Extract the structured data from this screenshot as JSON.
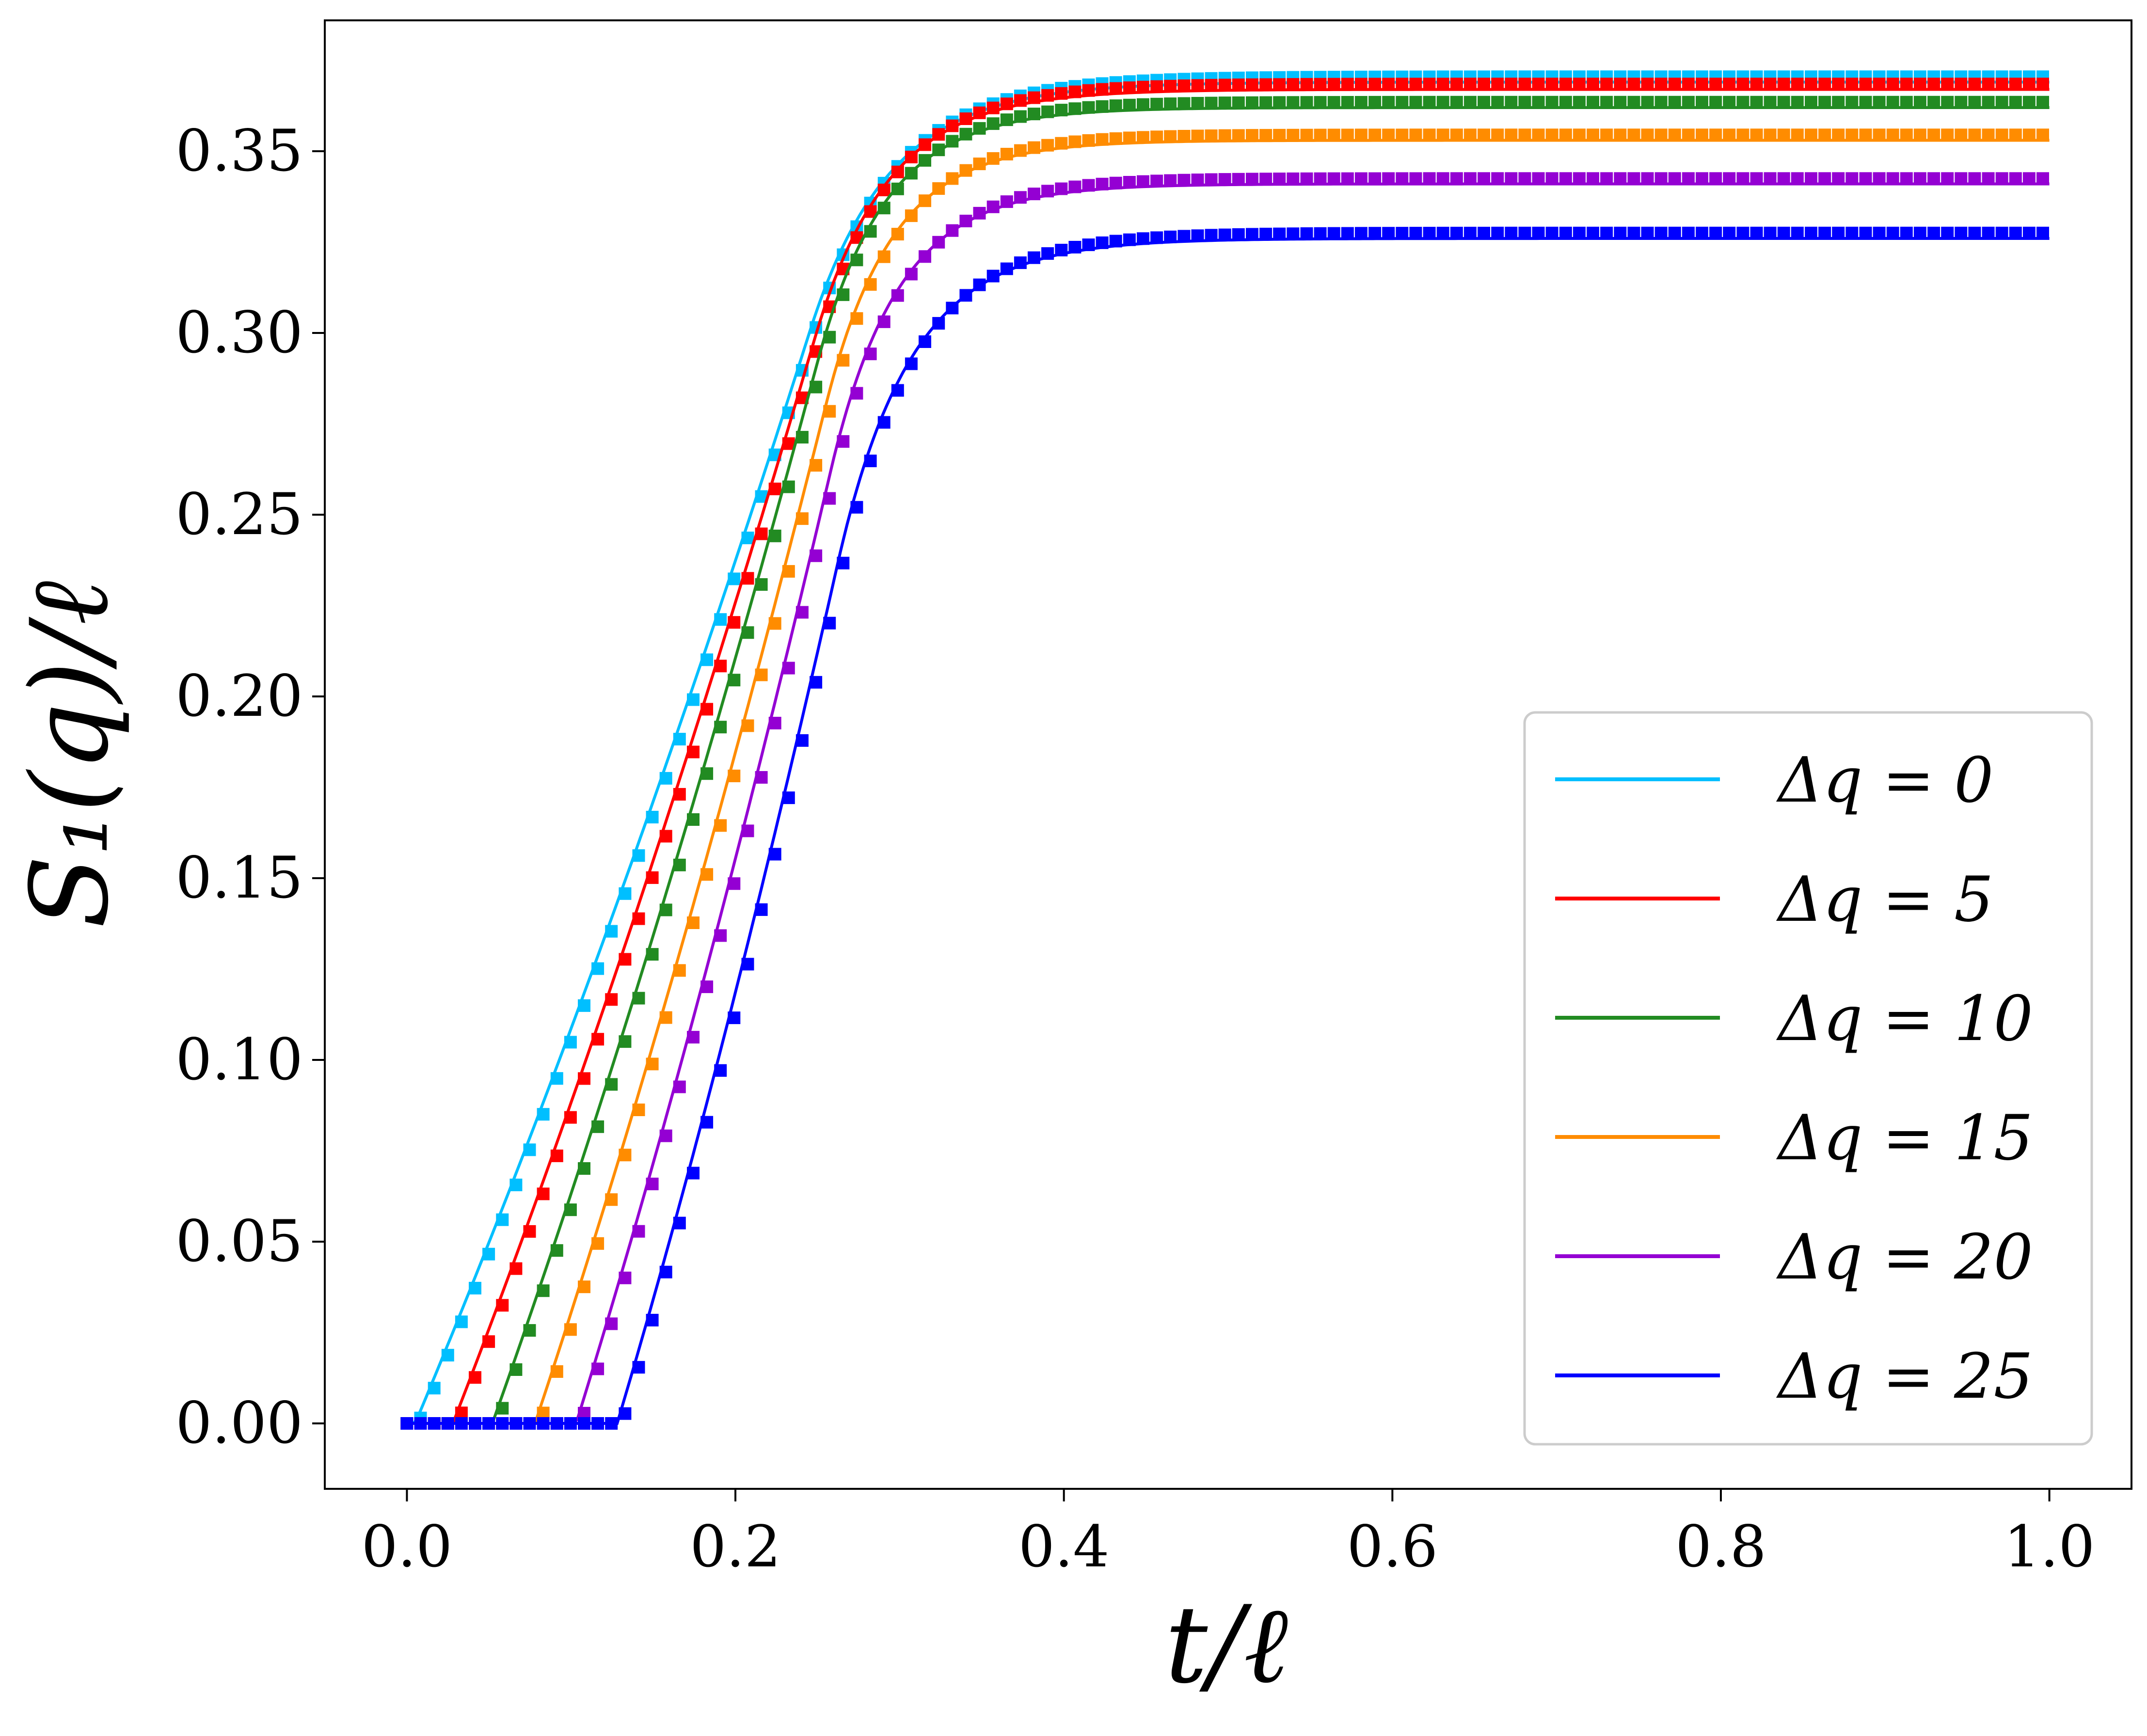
{
  "chart_data": {
    "type": "line",
    "title": "",
    "xlabel": "t/ℓ",
    "ylabel": "S₁(q)/ℓ",
    "xlim": [
      -0.05,
      1.05
    ],
    "ylim": [
      -0.018,
      0.386
    ],
    "xticks": [
      0.0,
      0.2,
      0.4,
      0.6,
      0.8,
      1.0
    ],
    "xtick_labels": [
      "0.0",
      "0.2",
      "0.4",
      "0.6",
      "0.8",
      "1.0"
    ],
    "yticks": [
      0.0,
      0.05,
      0.1,
      0.15,
      0.2,
      0.25,
      0.3,
      0.35
    ],
    "ytick_labels": [
      "0.00",
      "0.05",
      "0.10",
      "0.15",
      "0.20",
      "0.25",
      "0.30",
      "0.35"
    ],
    "grid": false,
    "legend_position": "lower-right",
    "markers": "square",
    "series": [
      {
        "name": "Δq = 0",
        "color": "#00bfff",
        "onset": 0.005,
        "kink": 0.245,
        "kink_y": 0.3,
        "sat": 0.369
      },
      {
        "name": "Δq = 5",
        "color": "#ff0000",
        "onset": 0.028,
        "kink": 0.248,
        "kink_y": 0.298,
        "sat": 0.367
      },
      {
        "name": "Δq = 10",
        "color": "#228b22",
        "onset": 0.052,
        "kink": 0.25,
        "kink_y": 0.292,
        "sat": 0.362
      },
      {
        "name": "Δq = 15",
        "color": "#ff8c00",
        "onset": 0.078,
        "kink": 0.255,
        "kink_y": 0.28,
        "sat": 0.353
      },
      {
        "name": "Δq = 20",
        "color": "#9400d3",
        "onset": 0.103,
        "kink": 0.258,
        "kink_y": 0.262,
        "sat": 0.341
      },
      {
        "name": "Δq = 25",
        "color": "#0000ff",
        "onset": 0.128,
        "kink": 0.262,
        "kink_y": 0.236,
        "sat": 0.326
      }
    ]
  }
}
